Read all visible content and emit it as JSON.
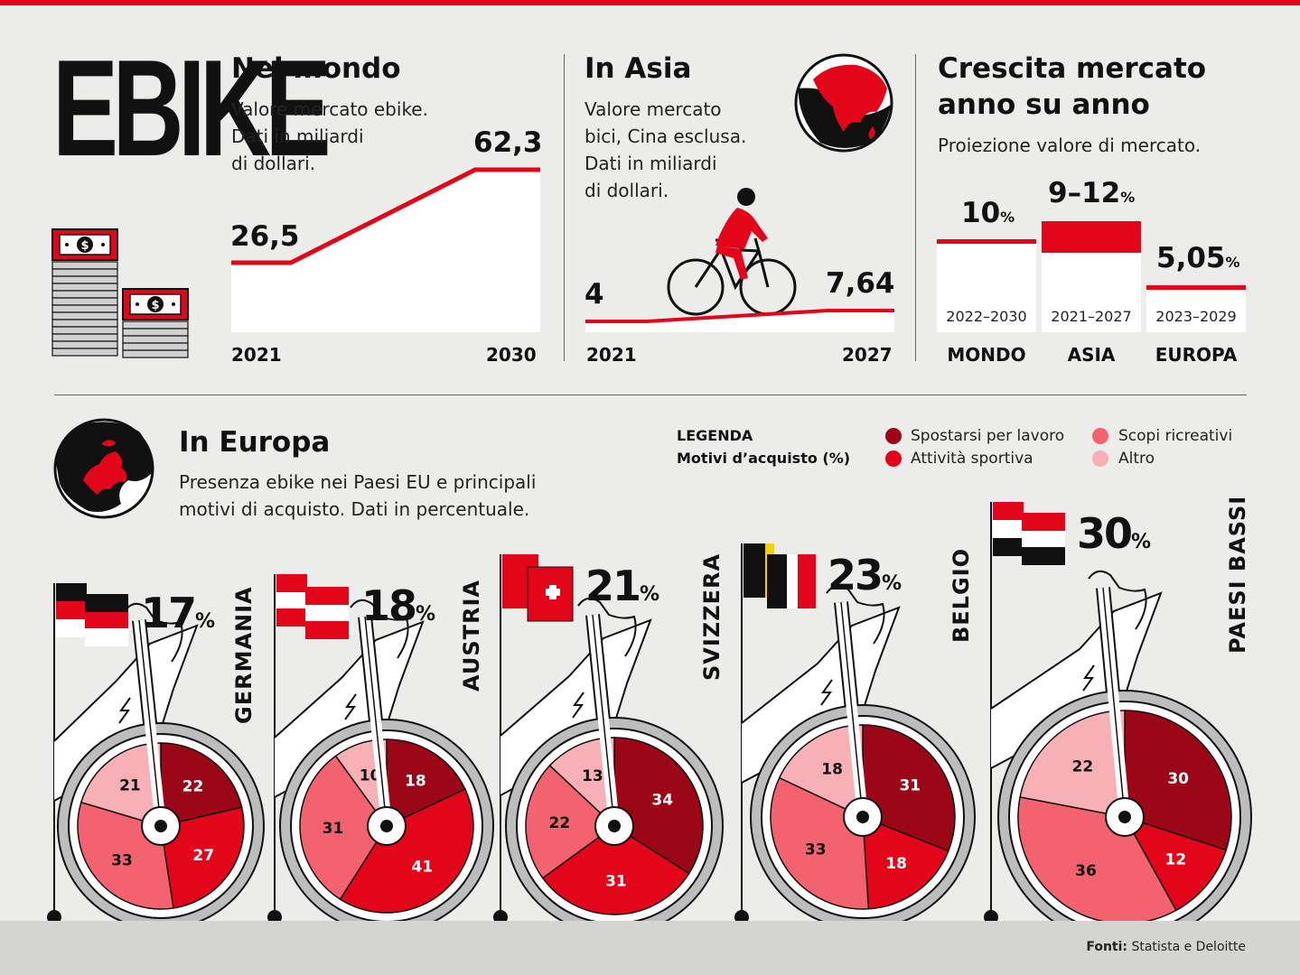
{
  "logo": "EBIKE",
  "world": {
    "title": "Nel mondo",
    "subtitle": [
      "Valore mercato ebike.",
      "Dati in miliardi",
      "di dollari."
    ],
    "start_value": "26,5",
    "end_value": "62,3",
    "start_year": "2021",
    "end_year": "2030"
  },
  "asia": {
    "title": "In Asia",
    "subtitle": [
      "Valore mercato",
      "bici, Cina esclusa.",
      "Dati in miliardi",
      "di dollari."
    ],
    "start_value": "4",
    "end_value": "7,64",
    "start_year": "2021",
    "end_year": "2027"
  },
  "growth": {
    "title": [
      "Crescita mercato",
      "anno su anno"
    ],
    "subtitle": "Proiezione valore di mercato.",
    "items": [
      {
        "value": "10",
        "unit": "%",
        "period": "2022–2030",
        "region": "MONDO"
      },
      {
        "value": "9–12",
        "unit": "%",
        "period": "2021–2027",
        "region": "ASIA"
      },
      {
        "value": "5,05",
        "unit": "%",
        "period": "2023–2029",
        "region": "EUROPA"
      }
    ]
  },
  "europe": {
    "title": "In Europa",
    "subtitle": [
      "Presenza ebike nei Paesi EU e principali",
      "motivi di acquisto. Dati in percentuale."
    ],
    "legend_title": [
      "LEGENDA",
      "Motivi d’acquisto (%)"
    ],
    "legend": [
      {
        "label": "Spostarsi per lavoro",
        "color": "#9b0716"
      },
      {
        "label": "Attività sportiva",
        "color": "#e3061a"
      },
      {
        "label": "Scopi ricreativi",
        "color": "#f2636f"
      },
      {
        "label": "Altro",
        "color": "#f7b0b6"
      }
    ]
  },
  "source": {
    "label": "Fonti:",
    "text": "Statista e Deloitte"
  },
  "chart_data": [
    {
      "type": "line",
      "title": "Nel mondo",
      "x": [
        "2021",
        "2030"
      ],
      "values": [
        26.5,
        62.3
      ]
    },
    {
      "type": "line",
      "title": "In Asia",
      "x": [
        "2021",
        "2027"
      ],
      "values": [
        4,
        7.64
      ]
    },
    {
      "type": "bar",
      "title": "Crescita mercato anno su anno",
      "categories": [
        "MONDO",
        "ASIA",
        "EUROPA"
      ],
      "values": [
        10,
        10.5,
        5.05
      ],
      "labels": [
        "10%",
        "9–12%",
        "5,05%"
      ]
    },
    {
      "type": "pie",
      "categories": [
        "Spostarsi per lavoro",
        "Attività sportiva",
        "Scopi ricreativi",
        "Altro"
      ],
      "countries": [
        {
          "name": "GERMANIA",
          "share": "17",
          "slices": [
            22,
            27,
            33,
            21
          ]
        },
        {
          "name": "AUSTRIA",
          "share": "18",
          "slices": [
            18,
            41,
            31,
            10
          ]
        },
        {
          "name": "SVIZZERA",
          "share": "21",
          "slices": [
            34,
            31,
            22,
            13
          ]
        },
        {
          "name": "BELGIO",
          "share": "23",
          "slices": [
            31,
            18,
            33,
            18
          ]
        },
        {
          "name": "PAESI BASSI",
          "share": "30",
          "slices": [
            30,
            12,
            36,
            22
          ]
        }
      ]
    }
  ]
}
